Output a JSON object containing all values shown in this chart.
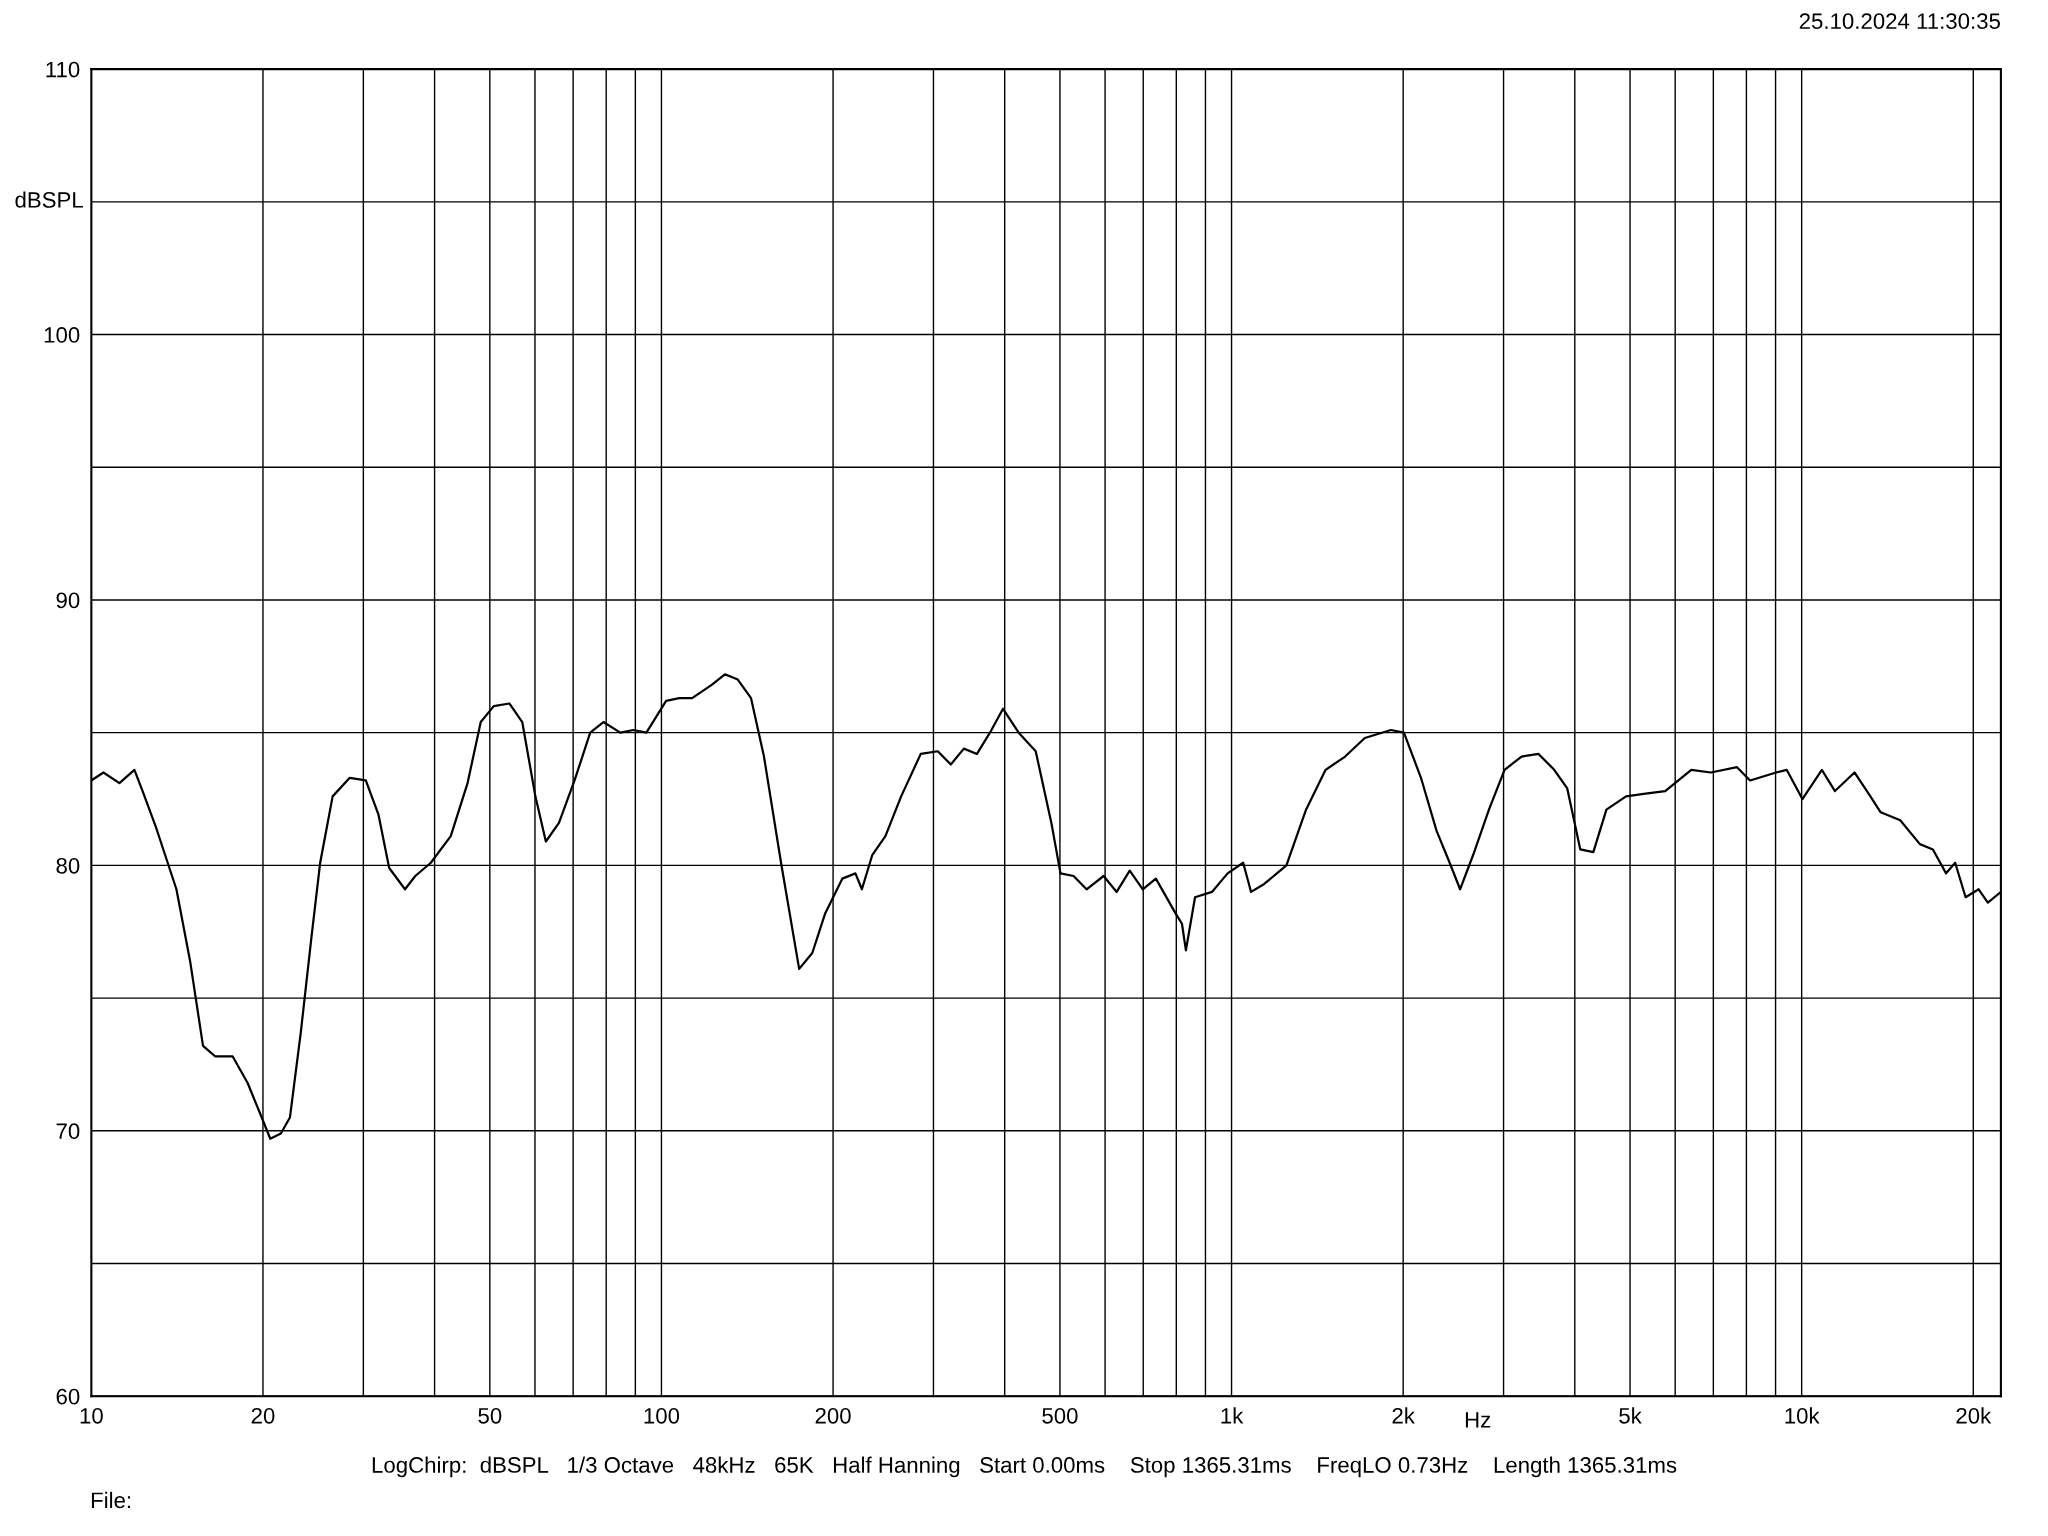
{
  "chart_data": {
    "type": "line",
    "xlabel": "Hz",
    "ylabel": "dBSPL",
    "log": "x",
    "grid": true,
    "legend": false,
    "xlim": [
      10,
      22360
    ],
    "ylim": [
      60,
      110
    ],
    "xticks": [
      10,
      {
        "value": 20,
        "label": "20"
      },
      {
        "value": 30,
        "label": null
      },
      {
        "value": 40,
        "label": null
      },
      50,
      {
        "value": 60,
        "label": null
      },
      {
        "value": 70,
        "label": null
      },
      {
        "value": 80,
        "label": null
      },
      {
        "value": 90,
        "label": null
      },
      100,
      200,
      {
        "value": 300,
        "label": null
      },
      {
        "value": 400,
        "label": null
      },
      500,
      {
        "value": 600,
        "label": null
      },
      {
        "value": 700,
        "label": null
      },
      {
        "value": 800,
        "label": null
      },
      {
        "value": 900,
        "label": null
      },
      {
        "value": 1000,
        "label": "1k"
      },
      {
        "value": 2000,
        "label": "2k"
      },
      {
        "value": 3000,
        "label": null
      },
      {
        "value": 4000,
        "label": null
      },
      {
        "value": 5000,
        "label": "5k"
      },
      {
        "value": 6000,
        "label": null
      },
      {
        "value": 7000,
        "label": null
      },
      {
        "value": 8000,
        "label": null
      },
      {
        "value": 9000,
        "label": null
      },
      {
        "value": 10000,
        "label": "10k"
      },
      {
        "value": 20000,
        "label": "20k"
      }
    ],
    "yticks": [
      60,
      {
        "value": 65,
        "label": null
      },
      70,
      {
        "value": 75,
        "label": null
      },
      80,
      {
        "value": 85,
        "label": null
      },
      90,
      {
        "value": 95,
        "label": null
      },
      100,
      {
        "value": 105,
        "label": null
      },
      110
    ],
    "annotations": [
      "25.10.2024 11:30:35",
      "LogChirp:  dBSPL   1/3 Octave   48kHz   65K   Half Hanning   Start 0.00ms    Stop 1365.31ms    FreqLO 0.73Hz    Length 1365.31ms",
      "File:"
    ],
    "series": [
      {
        "color": "#000000",
        "x": [
          10,
          10.5,
          11.2,
          11.9,
          12.3,
          13.0,
          14.1,
          14.9,
          15.7,
          16.5,
          17.7,
          18.8,
          19.9,
          20.6,
          21.5,
          22.3,
          23.3,
          24.3,
          25.2,
          26.5,
          28.4,
          30.3,
          31.9,
          33.3,
          35.5,
          37.0,
          39.4,
          42.7,
          45.7,
          48.2,
          50.8,
          54.1,
          57.0,
          60.1,
          62.7,
          66.1,
          70.4,
          75.0,
          79.1,
          84.7,
          89.3,
          94.1,
          101.9,
          107.4,
          113.2,
          122.5,
          129.2,
          136.1,
          143.6,
          151.3,
          162.1,
          174.4,
          183.9,
          193.8,
          207.6,
          218.9,
          224.7,
          234.4,
          247.1,
          263.3,
          285.0,
          305.3,
          321.8,
          339.2,
          357.6,
          376.9,
          397.3,
          423.3,
          453.4,
          483.0,
          501.1,
          528.3,
          556.8,
          596.5,
          628.8,
          662.8,
          698.7,
          736.6,
          797.2,
          818.5,
          831.6,
          862.9,
          923.9,
          984.2,
          1048,
          1082,
          1141,
          1248,
          1351,
          1462,
          1582,
          1713,
          1903,
          2006,
          2149,
          2289,
          2413,
          2517,
          2654,
          2828,
          3012,
          3226,
          3455,
          3681,
          3880,
          4090,
          4311,
          4545,
          4920,
          5324,
          5763,
          6403,
          6930,
          7701,
          8119,
          9022,
          9412,
          10030,
          10850,
          11440,
          12380,
          13200,
          13760,
          14890,
          16120,
          16990,
          17920,
          18590,
          19390,
          20440,
          21210,
          22360
        ],
        "values": [
          83.2,
          83.5,
          83.1,
          83.6,
          82.8,
          81.4,
          79.1,
          76.4,
          73.2,
          72.8,
          72.8,
          71.8,
          70.5,
          69.7,
          69.9,
          70.5,
          73.7,
          77.2,
          80.1,
          82.6,
          83.3,
          83.2,
          81.9,
          79.9,
          79.1,
          79.6,
          80.1,
          81.1,
          83.1,
          85.4,
          86.0,
          86.1,
          85.4,
          82.6,
          80.9,
          81.6,
          83.2,
          85.0,
          85.4,
          85.0,
          85.1,
          85.0,
          86.2,
          86.3,
          86.3,
          86.8,
          87.2,
          87.0,
          86.3,
          84.1,
          80.1,
          76.1,
          76.7,
          78.2,
          79.5,
          79.7,
          79.1,
          80.4,
          81.1,
          82.6,
          84.2,
          84.3,
          83.8,
          84.4,
          84.2,
          85.0,
          85.9,
          85.0,
          84.3,
          81.6,
          79.7,
          79.6,
          79.1,
          79.6,
          79.0,
          79.8,
          79.1,
          79.5,
          78.2,
          77.8,
          76.8,
          78.8,
          79.0,
          79.7,
          80.1,
          79.0,
          79.3,
          80.0,
          82.1,
          83.6,
          84.1,
          84.8,
          85.1,
          85.0,
          83.3,
          81.3,
          80.1,
          79.1,
          80.4,
          82.1,
          83.6,
          84.1,
          84.2,
          83.6,
          82.9,
          80.6,
          80.5,
          82.1,
          82.6,
          82.7,
          82.8,
          83.6,
          83.5,
          83.7,
          83.2,
          83.5,
          83.6,
          82.5,
          83.6,
          82.8,
          83.5,
          82.6,
          82.0,
          81.7,
          80.8,
          80.6,
          79.7,
          80.1,
          78.8,
          79.1,
          78.6,
          79.0
        ]
      }
    ]
  }
}
